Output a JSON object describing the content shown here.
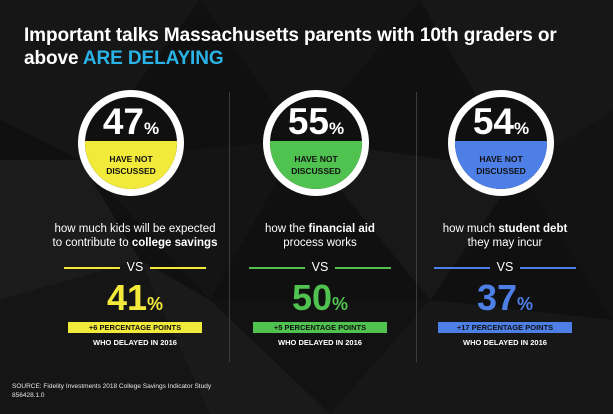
{
  "title": {
    "text": "Important talks Massachusetts parents with 10th graders or above",
    "highlight": "ARE DELAYING"
  },
  "colors": {
    "accent": "#2ab3e6",
    "yellow": "#f2ea3a",
    "green": "#50c24f",
    "blue": "#4d7fe6",
    "background": "#101010"
  },
  "stats": [
    {
      "percent": "47",
      "percent_sign": "%",
      "status_line1": "HAVE NOT",
      "status_line2": "DISCUSSED",
      "desc_line1": "how much kids will be expected",
      "desc_line2_plain": "to contribute to",
      "desc_line2_bold": "college savings",
      "vs": "VS",
      "prior_percent": "41",
      "prior_sign": "%",
      "change": "+6 PERCENTAGE POINTS",
      "who_delayed": "WHO DELAYED IN 2016"
    },
    {
      "percent": "55",
      "percent_sign": "%",
      "status_line1": "HAVE NOT",
      "status_line2": "DISCUSSED",
      "desc_line1_plain": "how the",
      "desc_line1_bold": "financial aid",
      "desc_line2": "process works",
      "vs": "VS",
      "prior_percent": "50",
      "prior_sign": "%",
      "change": "+5 PERCENTAGE POINTS",
      "who_delayed": "WHO DELAYED IN 2016"
    },
    {
      "percent": "54",
      "percent_sign": "%",
      "status_line1": "HAVE NOT",
      "status_line2": "DISCUSSED",
      "desc_line1_plain": "how much",
      "desc_line1_bold": "student debt",
      "desc_line2": "they may incur",
      "vs": "VS",
      "prior_percent": "37",
      "prior_sign": "%",
      "change": "+17 PERCENTAGE POINTS",
      "who_delayed": "WHO DELAYED IN 2016"
    }
  ],
  "footer": {
    "source": "SOURCE: Fidelity Investments 2018 College Savings Indicator Study",
    "code": "856428.1.0"
  }
}
